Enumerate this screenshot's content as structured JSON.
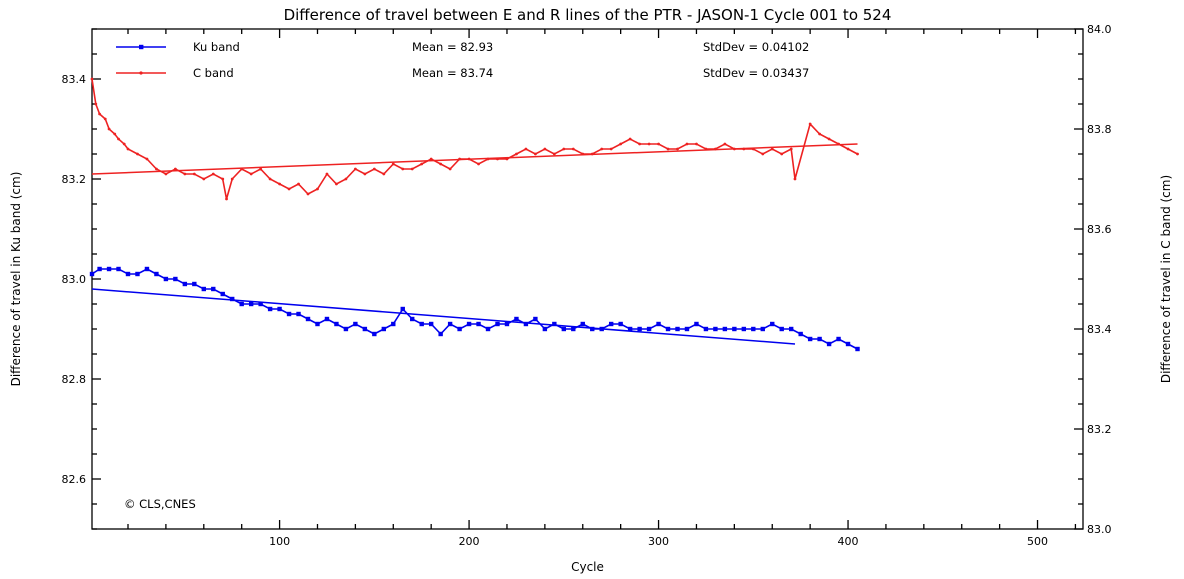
{
  "chart_data": {
    "type": "line",
    "title": "Difference of travel between E and R lines of the PTR - JASON-1 Cycle 001 to 524",
    "xlabel": "Cycle",
    "ylabel_left": "Difference of travel in Ku band (cm)",
    "ylabel_right": "Difference of travel in C band (cm)",
    "xlim": [
      1,
      524
    ],
    "ylim_left": [
      82.5,
      83.5
    ],
    "ylim_right": [
      83.0,
      84.0
    ],
    "x_ticks": [
      100,
      200,
      300,
      400,
      500
    ],
    "y_ticks_left": [
      82.6,
      82.8,
      83.0,
      83.2,
      83.4
    ],
    "y_ticks_right": [
      83.0,
      83.2,
      83.4,
      83.6,
      83.8,
      84.0
    ],
    "grid": false,
    "legend_position": "top-left",
    "copyright": "© CLS,CNES",
    "series": [
      {
        "name": "Ku band",
        "axis": "left",
        "color": "#0000ee",
        "marker": "square",
        "mean_label": "Mean = 82.93",
        "std_label": "StdDev = 0.04102",
        "x": [
          1,
          5,
          10,
          15,
          20,
          25,
          30,
          35,
          40,
          45,
          50,
          55,
          60,
          65,
          70,
          75,
          80,
          85,
          90,
          95,
          100,
          105,
          110,
          115,
          120,
          125,
          130,
          135,
          140,
          145,
          150,
          155,
          160,
          165,
          170,
          175,
          180,
          185,
          190,
          195,
          200,
          205,
          210,
          215,
          220,
          225,
          230,
          235,
          240,
          245,
          250,
          255,
          260,
          265,
          270,
          275,
          280,
          285,
          290,
          295,
          300,
          305,
          310,
          315,
          320,
          325,
          330,
          335,
          340,
          345,
          350,
          355,
          360,
          365,
          370,
          375,
          380,
          385,
          390,
          395,
          400,
          405
        ],
        "y": [
          83.01,
          83.02,
          83.02,
          83.02,
          83.01,
          83.01,
          83.02,
          83.01,
          83.0,
          83.0,
          82.99,
          82.99,
          82.98,
          82.98,
          82.97,
          82.96,
          82.95,
          82.95,
          82.95,
          82.94,
          82.94,
          82.93,
          82.93,
          82.92,
          82.91,
          82.92,
          82.91,
          82.9,
          82.91,
          82.9,
          82.89,
          82.9,
          82.91,
          82.94,
          82.92,
          82.91,
          82.91,
          82.89,
          82.91,
          82.9,
          82.91,
          82.91,
          82.9,
          82.91,
          82.91,
          82.92,
          82.91,
          82.92,
          82.9,
          82.91,
          82.9,
          82.9,
          82.91,
          82.9,
          82.9,
          82.91,
          82.91,
          82.9,
          82.9,
          82.9,
          82.91,
          82.9,
          82.9,
          82.9,
          82.91,
          82.9,
          82.9,
          82.9,
          82.9,
          82.9,
          82.9,
          82.9,
          82.91,
          82.9,
          82.9,
          82.89,
          82.88,
          82.88,
          82.87,
          82.88,
          82.87,
          82.86
        ],
        "trend": {
          "x": [
            1,
            372
          ],
          "y": [
            82.98,
            82.87
          ]
        }
      },
      {
        "name": "C band",
        "axis": "right",
        "color": "#ee2222",
        "marker": "triangle",
        "mean_label": "Mean = 83.74",
        "std_label": "StdDev = 0.03437",
        "x": [
          1,
          3,
          5,
          8,
          10,
          13,
          15,
          18,
          20,
          25,
          30,
          35,
          40,
          45,
          50,
          55,
          60,
          65,
          70,
          72,
          75,
          80,
          85,
          90,
          95,
          100,
          105,
          110,
          115,
          120,
          125,
          130,
          135,
          140,
          145,
          150,
          155,
          160,
          165,
          170,
          175,
          180,
          185,
          190,
          195,
          200,
          205,
          210,
          215,
          220,
          225,
          230,
          235,
          240,
          245,
          250,
          255,
          260,
          265,
          270,
          275,
          280,
          285,
          290,
          295,
          300,
          305,
          310,
          315,
          320,
          325,
          330,
          335,
          340,
          345,
          350,
          355,
          360,
          365,
          370,
          372,
          380,
          385,
          390,
          395,
          400,
          405
        ],
        "y": [
          83.9,
          83.85,
          83.83,
          83.82,
          83.8,
          83.79,
          83.78,
          83.77,
          83.76,
          83.75,
          83.74,
          83.72,
          83.71,
          83.72,
          83.71,
          83.71,
          83.7,
          83.71,
          83.7,
          83.66,
          83.7,
          83.72,
          83.71,
          83.72,
          83.7,
          83.69,
          83.68,
          83.69,
          83.67,
          83.68,
          83.71,
          83.69,
          83.7,
          83.72,
          83.71,
          83.72,
          83.71,
          83.73,
          83.72,
          83.72,
          83.73,
          83.74,
          83.73,
          83.72,
          83.74,
          83.74,
          83.73,
          83.74,
          83.74,
          83.74,
          83.75,
          83.76,
          83.75,
          83.76,
          83.75,
          83.76,
          83.76,
          83.75,
          83.75,
          83.76,
          83.76,
          83.77,
          83.78,
          83.77,
          83.77,
          83.77,
          83.76,
          83.76,
          83.77,
          83.77,
          83.76,
          83.76,
          83.77,
          83.76,
          83.76,
          83.76,
          83.75,
          83.76,
          83.75,
          83.76,
          83.7,
          83.81,
          83.79,
          83.78,
          83.77,
          83.76,
          83.75
        ],
        "trend": {
          "x": [
            1,
            405
          ],
          "y": [
            83.71,
            83.77
          ]
        }
      }
    ]
  }
}
